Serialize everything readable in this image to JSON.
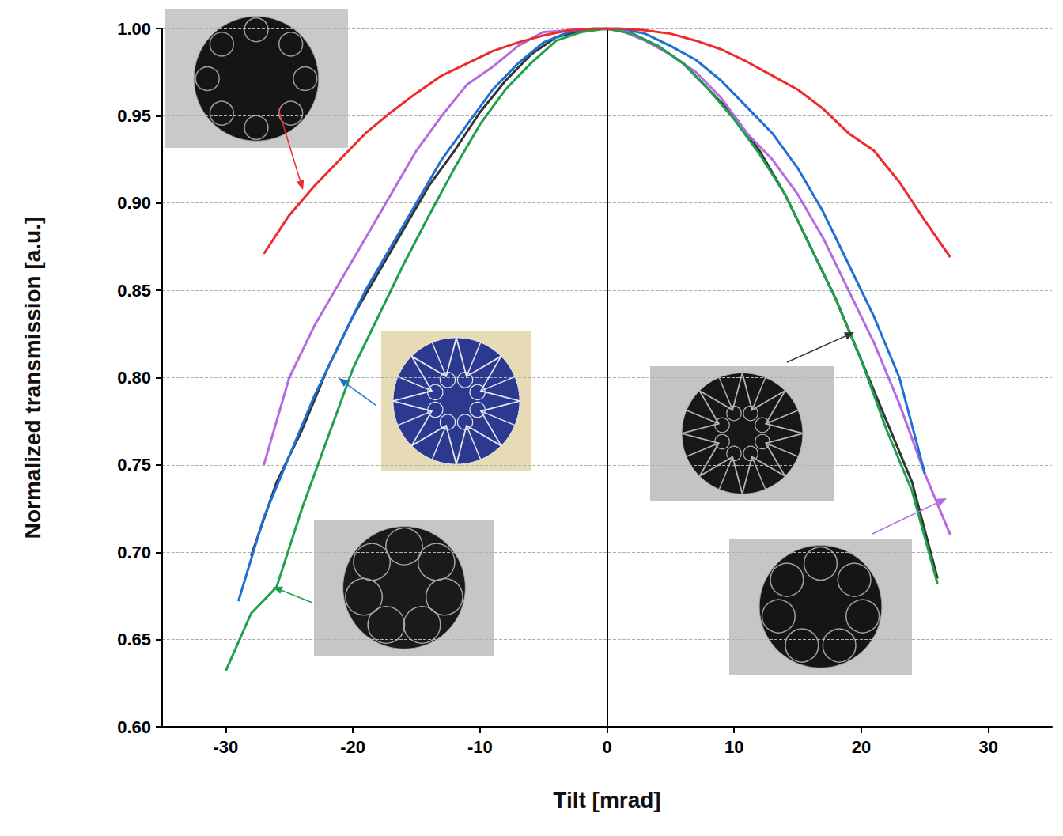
{
  "chart_data": {
    "type": "line",
    "xlabel": "Tilt [mrad]",
    "ylabel": "Normalized transmission [a.u.]",
    "xlim": [
      -35,
      35
    ],
    "xticks": [
      -30,
      -20,
      -10,
      0,
      10,
      20,
      30
    ],
    "ylim": [
      0.6,
      1.0
    ],
    "yticks": [
      {
        "value": 0.6,
        "label": "0.60"
      },
      0.65,
      {
        "value": 0.7,
        "label": "0.70"
      },
      0.75,
      {
        "value": 0.8,
        "label": "0.80"
      },
      0.85,
      {
        "value": 0.9,
        "label": "0.90"
      },
      0.95,
      {
        "value": 1.0,
        "label": "1.00"
      }
    ],
    "grid": true,
    "vlines": [
      0
    ],
    "series": [
      {
        "color": "#333333",
        "x": [
          -28,
          -26,
          -24,
          -22,
          -20,
          -18,
          -16,
          -14,
          -12,
          -10,
          -8,
          -6,
          -4,
          -2,
          0,
          2,
          4,
          6,
          8,
          10,
          12,
          14,
          16,
          18,
          20,
          22,
          24,
          26
        ],
        "values": [
          0.698,
          0.74,
          0.77,
          0.805,
          0.835,
          0.86,
          0.885,
          0.91,
          0.93,
          0.952,
          0.97,
          0.985,
          0.995,
          0.999,
          1.0,
          0.997,
          0.99,
          0.98,
          0.965,
          0.95,
          0.93,
          0.905,
          0.875,
          0.845,
          0.81,
          0.775,
          0.74,
          0.685
        ]
      },
      {
        "color": "#b36ae2",
        "x": [
          -27,
          -25,
          -23,
          -21,
          -19,
          -17,
          -15,
          -13,
          -11,
          -9,
          -7,
          -5,
          -3,
          -1,
          1,
          3,
          5,
          7,
          9,
          11,
          13,
          15,
          17,
          19,
          21,
          23,
          25,
          27
        ],
        "values": [
          0.75,
          0.8,
          0.83,
          0.855,
          0.88,
          0.905,
          0.93,
          0.95,
          0.968,
          0.978,
          0.99,
          0.998,
          0.999,
          1.0,
          0.999,
          0.993,
          0.985,
          0.975,
          0.96,
          0.94,
          0.925,
          0.905,
          0.88,
          0.85,
          0.82,
          0.785,
          0.745,
          0.71
        ]
      },
      {
        "color": "#1f6fd6",
        "x": [
          -29,
          -27,
          -25,
          -23,
          -21,
          -19,
          -17,
          -15,
          -13,
          -11,
          -9,
          -7,
          -5,
          -3,
          -1,
          1,
          3,
          5,
          7,
          9,
          11,
          13,
          15,
          17,
          19,
          21,
          23,
          25
        ],
        "values": [
          0.672,
          0.72,
          0.755,
          0.79,
          0.82,
          0.85,
          0.875,
          0.9,
          0.925,
          0.945,
          0.965,
          0.98,
          0.992,
          0.998,
          1.0,
          1.0,
          0.997,
          0.99,
          0.982,
          0.97,
          0.955,
          0.94,
          0.92,
          0.895,
          0.865,
          0.835,
          0.8,
          0.745
        ]
      },
      {
        "color": "#1fa04a",
        "x": [
          -30,
          -28,
          -26,
          -24,
          -22,
          -20,
          -18,
          -16,
          -14,
          -12,
          -10,
          -8,
          -6,
          -4,
          -2,
          0,
          2,
          4,
          6,
          8,
          10,
          12,
          14,
          16,
          18,
          20,
          22,
          24,
          26
        ],
        "values": [
          0.632,
          0.665,
          0.68,
          0.725,
          0.765,
          0.805,
          0.835,
          0.865,
          0.893,
          0.92,
          0.945,
          0.965,
          0.98,
          0.993,
          0.998,
          1.0,
          0.997,
          0.99,
          0.98,
          0.965,
          0.948,
          0.928,
          0.905,
          0.875,
          0.845,
          0.81,
          0.77,
          0.735,
          0.682
        ]
      },
      {
        "color": "#ee2a2a",
        "x": [
          -27,
          -25,
          -23,
          -21,
          -19,
          -17,
          -15,
          -13,
          -11,
          -9,
          -7,
          -5,
          -3,
          -1,
          1,
          3,
          5,
          7,
          9,
          11,
          13,
          15,
          17,
          19,
          21,
          23,
          25,
          27
        ],
        "values": [
          0.871,
          0.893,
          0.91,
          0.925,
          0.94,
          0.952,
          0.963,
          0.973,
          0.98,
          0.987,
          0.992,
          0.996,
          0.999,
          1.0,
          1.0,
          0.999,
          0.997,
          0.993,
          0.988,
          0.981,
          0.973,
          0.965,
          0.954,
          0.94,
          0.93,
          0.912,
          0.89,
          0.869
        ]
      }
    ]
  }
}
